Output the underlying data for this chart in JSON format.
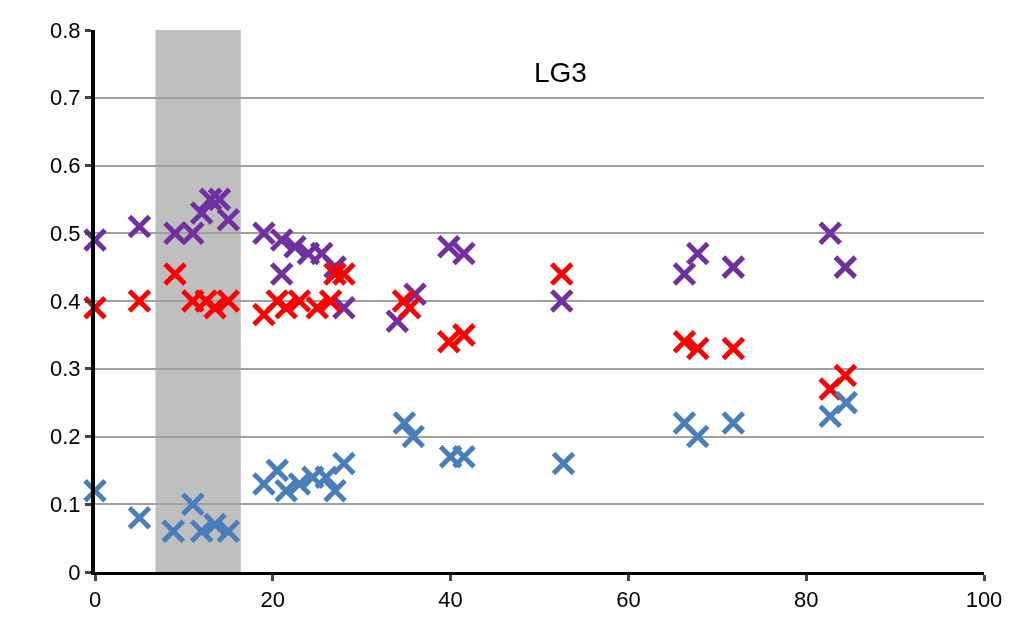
{
  "chart_data": {
    "type": "scatter",
    "title": "LG3",
    "marker": "cross",
    "grid": "y",
    "xlim": [
      0,
      100
    ],
    "xticks": [
      0,
      20,
      40,
      60,
      80,
      100
    ],
    "ylim": [
      0,
      0.8
    ],
    "yticks": [
      0,
      0.1,
      0.2,
      0.3,
      0.4,
      0.5,
      0.6,
      0.7,
      0.8
    ],
    "bands": [
      {
        "axis": "x",
        "from": 6.8,
        "to": 16.4,
        "color": "#bfbfbf"
      }
    ],
    "series": [
      {
        "color": "#7030a0",
        "x": [
          0,
          5,
          9,
          11,
          12,
          13,
          14,
          15,
          19,
          21,
          22.5,
          24,
          25.5,
          21,
          27,
          28,
          34,
          36,
          39.8,
          41.5,
          52.5,
          66.3,
          67.8,
          71.8,
          82.7,
          84.4
        ],
        "values": [
          0.49,
          0.51,
          0.5,
          0.5,
          0.53,
          0.55,
          0.55,
          0.52,
          0.5,
          0.49,
          0.48,
          0.47,
          0.47,
          0.44,
          0.45,
          0.39,
          0.37,
          0.41,
          0.48,
          0.47,
          0.4,
          0.44,
          0.47,
          0.45,
          0.5,
          0.45
        ]
      },
      {
        "color": "#ff0000",
        "x": [
          0,
          5,
          9,
          11,
          12.5,
          13.5,
          15,
          19,
          20.5,
          21.5,
          23,
          25,
          26.5,
          27,
          28,
          34.7,
          35.4,
          39.8,
          41.5,
          52.5,
          66.3,
          67.8,
          71.8,
          82.7,
          84.4
        ],
        "values": [
          0.39,
          0.4,
          0.44,
          0.4,
          0.4,
          0.39,
          0.4,
          0.38,
          0.4,
          0.39,
          0.4,
          0.39,
          0.4,
          0.44,
          0.44,
          0.4,
          0.39,
          0.34,
          0.35,
          0.44,
          0.34,
          0.33,
          0.33,
          0.27,
          0.29
        ]
      },
      {
        "color": "#4a7ebb",
        "x": [
          0,
          5,
          8.8,
          11,
          12,
          13.5,
          15,
          19,
          20.5,
          21.5,
          23,
          24.5,
          26,
          27,
          28,
          34.8,
          35.8,
          40,
          41.5,
          52.7,
          66.3,
          67.8,
          71.8,
          82.7,
          84.5
        ],
        "values": [
          0.12,
          0.08,
          0.06,
          0.1,
          0.06,
          0.07,
          0.06,
          0.13,
          0.15,
          0.12,
          0.13,
          0.14,
          0.14,
          0.12,
          0.16,
          0.22,
          0.2,
          0.17,
          0.17,
          0.16,
          0.22,
          0.2,
          0.22,
          0.23,
          0.25
        ]
      }
    ]
  }
}
